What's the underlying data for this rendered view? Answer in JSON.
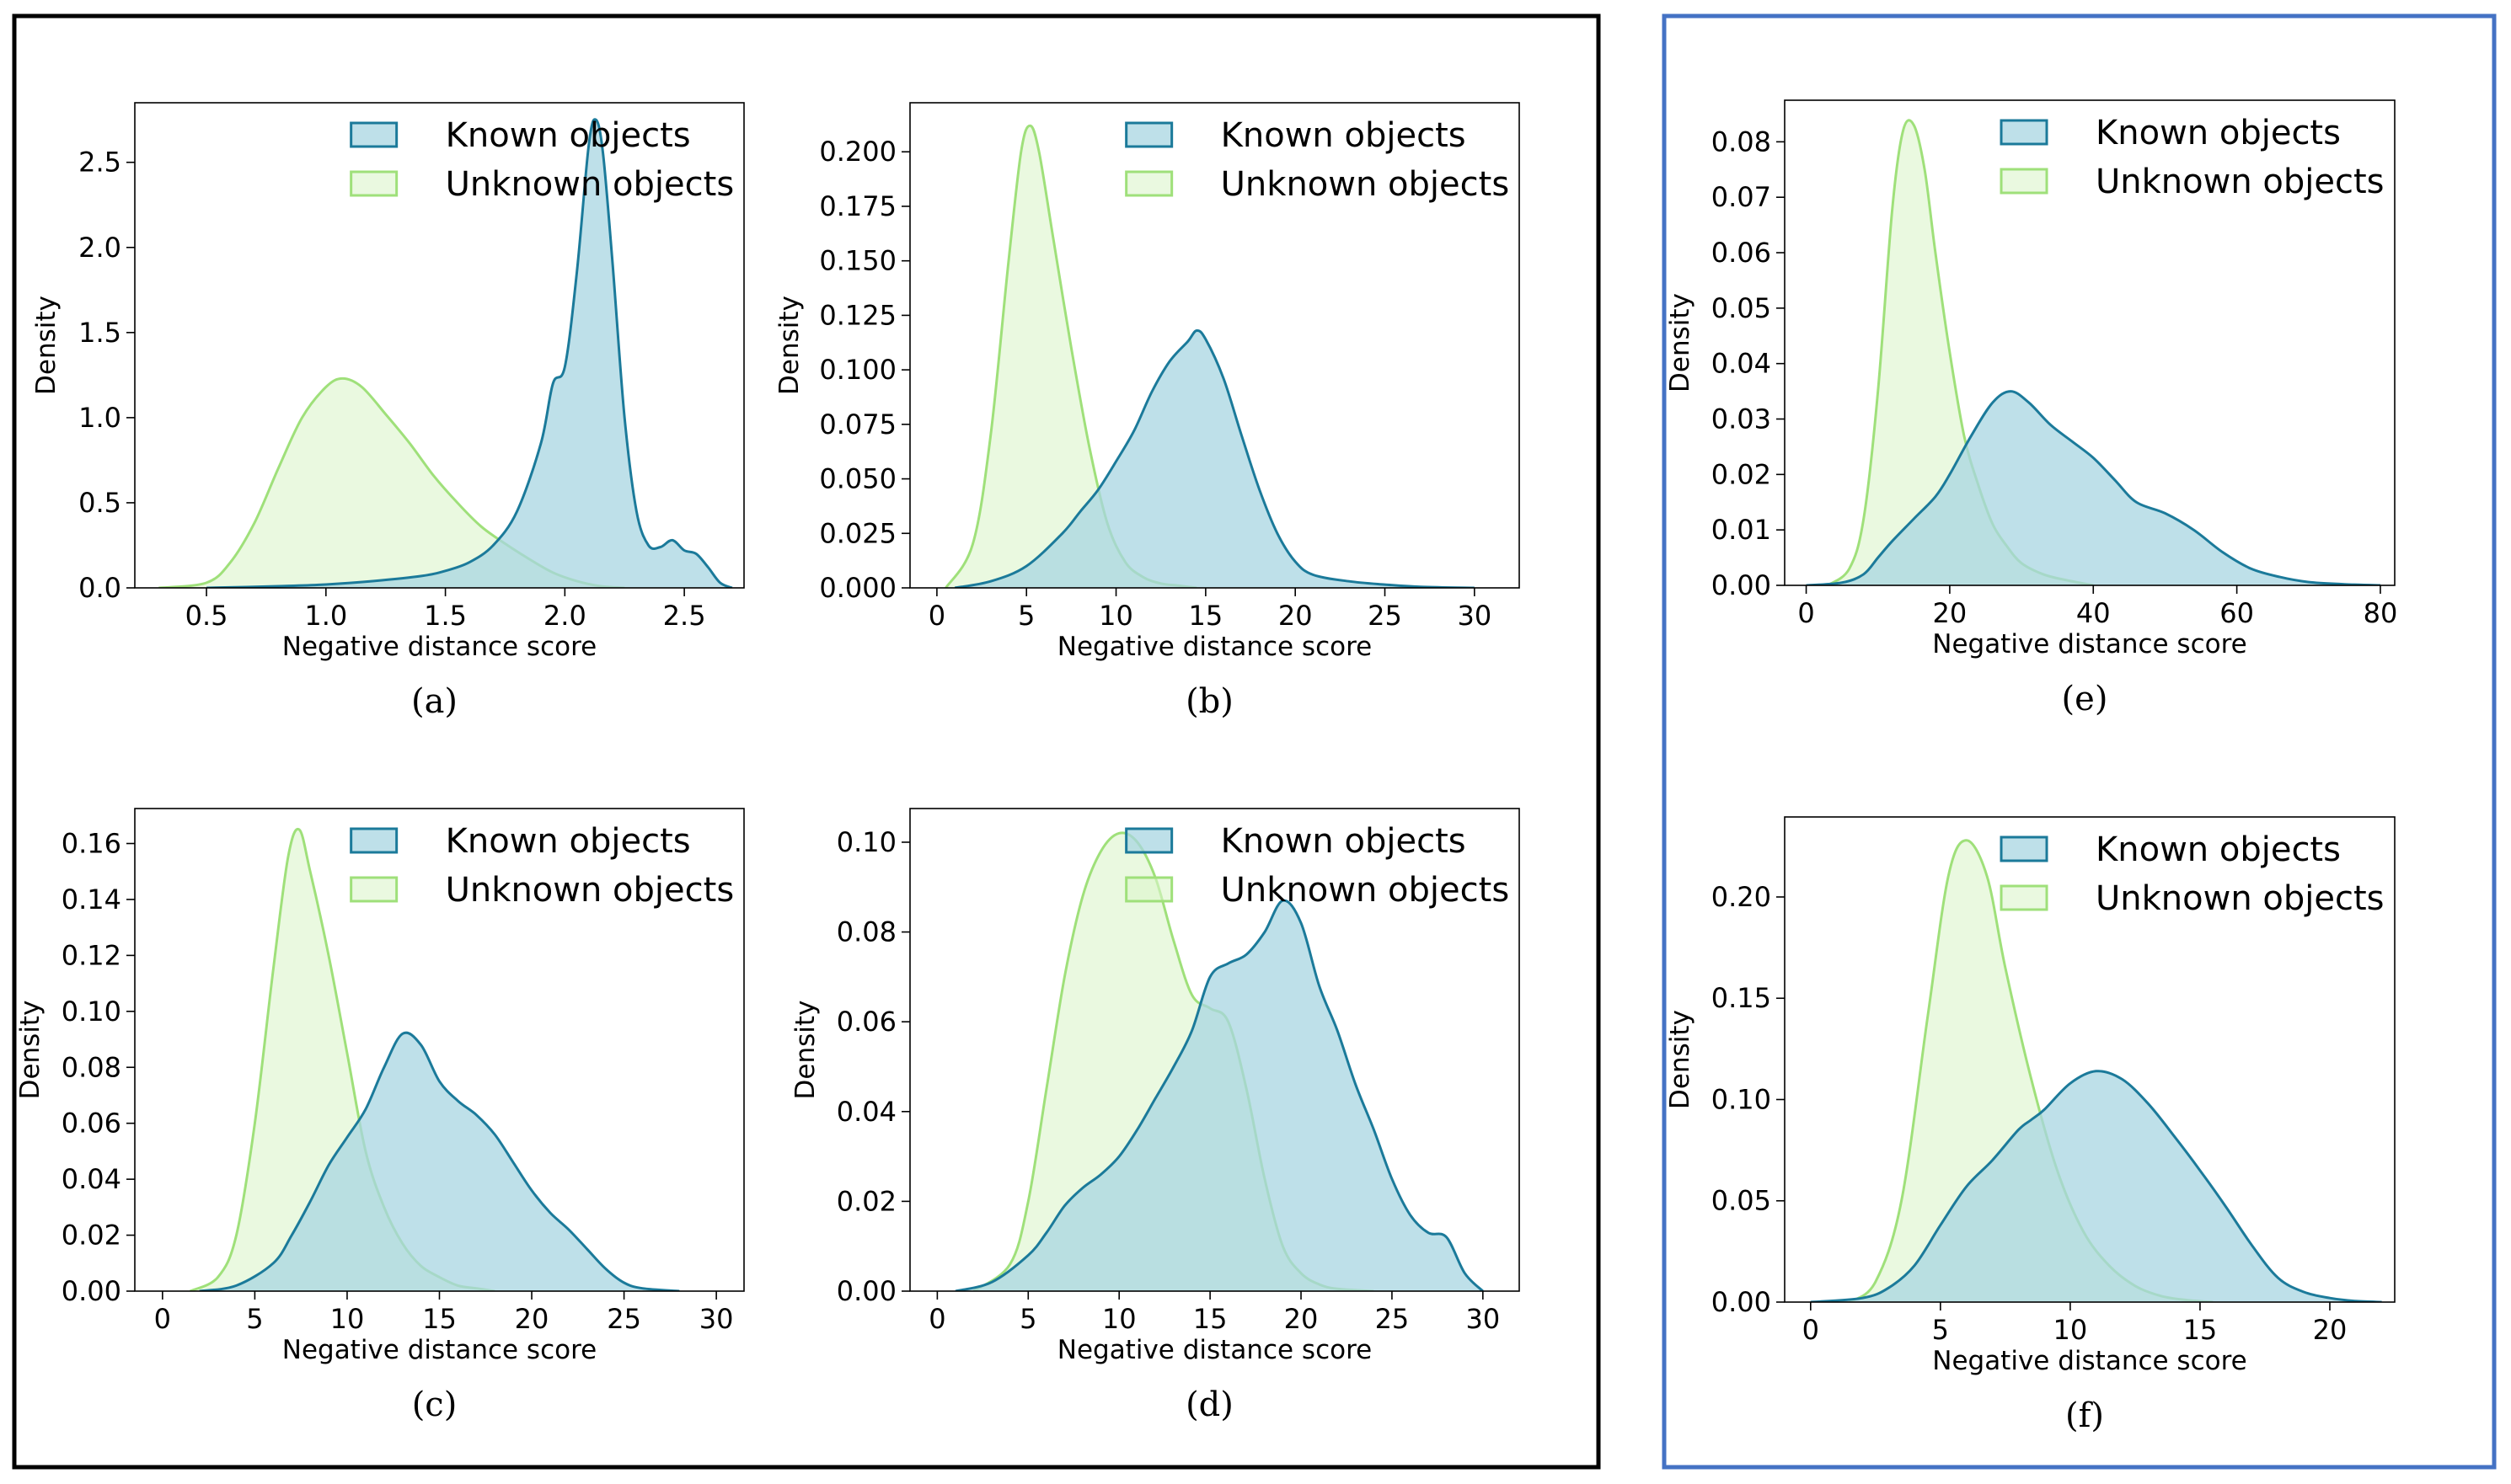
{
  "figure": {
    "border_colors": {
      "left": "#000000",
      "right": "#4472C4"
    }
  },
  "colors": {
    "known_line": "#1b7a9a",
    "known_fill": "#a8d5e2",
    "unknown_line": "#9fe07a",
    "unknown_fill": "#dcf5cc"
  },
  "chart_data": [
    {
      "id": "a",
      "type": "area",
      "caption": "(a)",
      "xlabel": "Negative distance score",
      "ylabel": "Density",
      "xlim": [
        0.2,
        2.75
      ],
      "ylim": [
        0,
        2.85
      ],
      "xticks": [
        0.5,
        1.0,
        1.5,
        2.0,
        2.5
      ],
      "xtick_labels": [
        "0.5",
        "1.0",
        "1.5",
        "2.0",
        "2.5"
      ],
      "yticks": [
        0,
        0.5,
        1.0,
        1.5,
        2.0,
        2.5
      ],
      "ytick_labels": [
        "0.0",
        "0.5",
        "1.0",
        "1.5",
        "2.0",
        "2.5"
      ],
      "legend": {
        "position": "top-right",
        "entries": [
          "Known objects",
          "Unknown objects"
        ]
      },
      "series": [
        {
          "name": "Unknown objects",
          "x": [
            0.3,
            0.5,
            0.6,
            0.7,
            0.8,
            0.9,
            1.0,
            1.07,
            1.15,
            1.25,
            1.35,
            1.45,
            1.55,
            1.65,
            1.75,
            1.85,
            1.95,
            2.05,
            2.15,
            2.25
          ],
          "y": [
            0.0,
            0.03,
            0.15,
            0.38,
            0.7,
            1.0,
            1.18,
            1.23,
            1.18,
            1.02,
            0.85,
            0.66,
            0.5,
            0.36,
            0.26,
            0.17,
            0.09,
            0.04,
            0.01,
            0.0
          ]
        },
        {
          "name": "Known objects",
          "x": [
            0.5,
            0.8,
            1.0,
            1.2,
            1.4,
            1.5,
            1.6,
            1.7,
            1.8,
            1.9,
            1.95,
            2.0,
            2.05,
            2.1,
            2.13,
            2.16,
            2.2,
            2.25,
            2.3,
            2.35,
            2.4,
            2.45,
            2.5,
            2.55,
            2.6,
            2.65,
            2.7
          ],
          "y": [
            0.0,
            0.01,
            0.02,
            0.04,
            0.07,
            0.1,
            0.15,
            0.25,
            0.45,
            0.85,
            1.2,
            1.3,
            1.85,
            2.6,
            2.75,
            2.55,
            1.9,
            1.0,
            0.45,
            0.25,
            0.24,
            0.28,
            0.22,
            0.2,
            0.12,
            0.03,
            0.0
          ]
        }
      ]
    },
    {
      "id": "b",
      "type": "area",
      "caption": "(b)",
      "xlabel": "Negative distance score",
      "ylabel": "Density",
      "xlim": [
        -1.5,
        32.5
      ],
      "ylim": [
        0,
        0.2225
      ],
      "xticks": [
        0,
        5,
        10,
        15,
        20,
        25,
        30
      ],
      "xtick_labels": [
        "0",
        "5",
        "10",
        "15",
        "20",
        "25",
        "30"
      ],
      "yticks": [
        0,
        0.025,
        0.05,
        0.075,
        0.1,
        0.125,
        0.15,
        0.175,
        0.2
      ],
      "ytick_labels": [
        "0.000",
        "0.025",
        "0.050",
        "0.075",
        "0.100",
        "0.125",
        "0.150",
        "0.175",
        "0.200"
      ],
      "legend": {
        "position": "top-right",
        "entries": [
          "Known objects",
          "Unknown objects"
        ]
      },
      "series": [
        {
          "name": "Unknown objects",
          "x": [
            0.5,
            2,
            3,
            4,
            4.7,
            5.2,
            5.7,
            6.5,
            7.5,
            8.5,
            9.5,
            10.5,
            11.5,
            12.5,
            13.5,
            14.5
          ],
          "y": [
            0.0,
            0.02,
            0.07,
            0.15,
            0.2,
            0.212,
            0.2,
            0.16,
            0.11,
            0.065,
            0.03,
            0.012,
            0.005,
            0.002,
            0.001,
            0.0
          ]
        },
        {
          "name": "Known objects",
          "x": [
            1,
            3,
            5,
            7,
            8,
            9,
            10,
            11,
            12,
            13,
            14,
            14.5,
            15,
            16,
            17,
            18,
            19,
            20,
            21,
            23,
            25,
            27,
            30
          ],
          "y": [
            0.0,
            0.003,
            0.01,
            0.025,
            0.035,
            0.045,
            0.058,
            0.072,
            0.09,
            0.104,
            0.113,
            0.118,
            0.114,
            0.096,
            0.07,
            0.045,
            0.025,
            0.012,
            0.006,
            0.003,
            0.0015,
            0.0005,
            0.0
          ]
        }
      ]
    },
    {
      "id": "c",
      "type": "area",
      "caption": "(c)",
      "xlabel": "Negative distance score",
      "ylabel": "Density",
      "xlim": [
        -1.5,
        31.5
      ],
      "ylim": [
        0,
        0.1725
      ],
      "xticks": [
        0,
        5,
        10,
        15,
        20,
        25,
        30
      ],
      "xtick_labels": [
        "0",
        "5",
        "10",
        "15",
        "20",
        "25",
        "30"
      ],
      "yticks": [
        0,
        0.02,
        0.04,
        0.06,
        0.08,
        0.1,
        0.12,
        0.14,
        0.16
      ],
      "ytick_labels": [
        "0.00",
        "0.02",
        "0.04",
        "0.06",
        "0.08",
        "0.10",
        "0.12",
        "0.14",
        "0.16"
      ],
      "legend": {
        "position": "top-right",
        "entries": [
          "Known objects",
          "Unknown objects"
        ]
      },
      "series": [
        {
          "name": "Unknown objects",
          "x": [
            1.5,
            3,
            4,
            5,
            6,
            6.8,
            7.4,
            8,
            9,
            10,
            11,
            12,
            13,
            14,
            15,
            16,
            17,
            18
          ],
          "y": [
            0.0,
            0.005,
            0.02,
            0.06,
            0.115,
            0.155,
            0.165,
            0.15,
            0.12,
            0.085,
            0.05,
            0.03,
            0.017,
            0.009,
            0.005,
            0.002,
            0.001,
            0.0
          ]
        },
        {
          "name": "Known objects",
          "x": [
            2,
            4,
            6,
            7,
            8,
            9,
            10,
            11,
            12,
            13,
            14,
            15,
            16,
            17,
            18,
            19,
            20,
            21,
            22,
            23,
            24,
            25,
            26,
            28
          ],
          "y": [
            0.0,
            0.002,
            0.01,
            0.02,
            0.032,
            0.045,
            0.055,
            0.065,
            0.08,
            0.092,
            0.088,
            0.075,
            0.068,
            0.063,
            0.056,
            0.046,
            0.036,
            0.028,
            0.022,
            0.015,
            0.008,
            0.003,
            0.001,
            0.0
          ]
        }
      ]
    },
    {
      "id": "d",
      "type": "area",
      "caption": "(d)",
      "xlabel": "Negative distance score",
      "ylabel": "Density",
      "xlim": [
        -1.5,
        32
      ],
      "ylim": [
        0,
        0.1075
      ],
      "xticks": [
        0,
        5,
        10,
        15,
        20,
        25,
        30
      ],
      "xtick_labels": [
        "0",
        "5",
        "10",
        "15",
        "20",
        "25",
        "30"
      ],
      "yticks": [
        0,
        0.02,
        0.04,
        0.06,
        0.08,
        0.1
      ],
      "ytick_labels": [
        "0.00",
        "0.02",
        "0.04",
        "0.06",
        "0.08",
        "0.10"
      ],
      "legend": {
        "position": "top-right",
        "entries": [
          "Known objects",
          "Unknown objects"
        ]
      },
      "series": [
        {
          "name": "Unknown objects",
          "x": [
            2,
            4,
            5,
            6,
            7,
            8,
            9,
            10,
            11,
            12,
            13,
            14,
            15,
            16,
            17,
            18,
            19,
            20,
            21,
            22,
            24
          ],
          "y": [
            0.0,
            0.006,
            0.02,
            0.045,
            0.07,
            0.088,
            0.098,
            0.102,
            0.1,
            0.092,
            0.078,
            0.066,
            0.063,
            0.06,
            0.045,
            0.025,
            0.01,
            0.004,
            0.0015,
            0.0005,
            0.0
          ]
        },
        {
          "name": "Known objects",
          "x": [
            1,
            3,
            5,
            6,
            7,
            8,
            9,
            10,
            11,
            12,
            13,
            14,
            15,
            16,
            17,
            18,
            19,
            20,
            21,
            22,
            23,
            24,
            25,
            26,
            27,
            28,
            29,
            30
          ],
          "y": [
            0.0,
            0.002,
            0.008,
            0.013,
            0.019,
            0.023,
            0.026,
            0.03,
            0.036,
            0.043,
            0.05,
            0.058,
            0.07,
            0.073,
            0.075,
            0.08,
            0.087,
            0.082,
            0.068,
            0.058,
            0.046,
            0.036,
            0.025,
            0.017,
            0.013,
            0.012,
            0.004,
            0.0
          ]
        }
      ]
    },
    {
      "id": "e",
      "type": "area",
      "caption": "(e)",
      "xlabel": "Negative distance score",
      "ylabel": "Density",
      "xlim": [
        -3,
        82
      ],
      "ylim": [
        0,
        0.0875
      ],
      "xticks": [
        0,
        20,
        40,
        60,
        80
      ],
      "xtick_labels": [
        "0",
        "20",
        "40",
        "60",
        "80"
      ],
      "yticks": [
        0,
        0.01,
        0.02,
        0.03,
        0.04,
        0.05,
        0.06,
        0.07,
        0.08
      ],
      "ytick_labels": [
        "0.00",
        "0.01",
        "0.02",
        "0.03",
        "0.04",
        "0.05",
        "0.06",
        "0.07",
        "0.08"
      ],
      "legend": {
        "position": "top-right",
        "entries": [
          "Known objects",
          "Unknown objects"
        ]
      },
      "series": [
        {
          "name": "Unknown objects",
          "x": [
            3,
            6,
            8,
            10,
            12,
            13.5,
            15,
            16.5,
            18,
            20,
            22,
            24,
            26,
            28,
            30,
            33,
            36,
            40
          ],
          "y": [
            0.0,
            0.003,
            0.012,
            0.035,
            0.068,
            0.082,
            0.083,
            0.075,
            0.06,
            0.042,
            0.027,
            0.018,
            0.011,
            0.007,
            0.004,
            0.002,
            0.001,
            0.0
          ]
        },
        {
          "name": "Known objects",
          "x": [
            0,
            5,
            8,
            10,
            12,
            15,
            18,
            20,
            23,
            26,
            28.5,
            31,
            34,
            37,
            40,
            43,
            46,
            50,
            54,
            58,
            62,
            66,
            70,
            75,
            80
          ],
          "y": [
            0.0,
            0.0005,
            0.002,
            0.005,
            0.008,
            0.012,
            0.016,
            0.02,
            0.027,
            0.033,
            0.035,
            0.033,
            0.029,
            0.026,
            0.023,
            0.019,
            0.015,
            0.013,
            0.01,
            0.006,
            0.003,
            0.0015,
            0.0006,
            0.0002,
            0.0
          ]
        }
      ]
    },
    {
      "id": "f",
      "type": "area",
      "caption": "(f)",
      "xlabel": "Negative distance score",
      "ylabel": "Density",
      "xlim": [
        -1,
        22.5
      ],
      "ylim": [
        0,
        0.2395
      ],
      "xticks": [
        0,
        5,
        10,
        15,
        20
      ],
      "xtick_labels": [
        "0",
        "5",
        "10",
        "15",
        "20"
      ],
      "yticks": [
        0,
        0.05,
        0.1,
        0.15,
        0.2
      ],
      "ytick_labels": [
        "0.00",
        "0.05",
        "0.10",
        "0.15",
        "0.20"
      ],
      "legend": {
        "position": "top-right",
        "entries": [
          "Known objects",
          "Unknown objects"
        ]
      },
      "series": [
        {
          "name": "Unknown objects",
          "x": [
            1.5,
            2.5,
            3.5,
            4.5,
            5.3,
            6,
            6.8,
            7.5,
            8.5,
            9.5,
            10.5,
            11.5,
            12.5,
            13.5,
            14.5,
            15.5
          ],
          "y": [
            0.0,
            0.01,
            0.05,
            0.14,
            0.21,
            0.228,
            0.21,
            0.165,
            0.11,
            0.065,
            0.035,
            0.018,
            0.008,
            0.003,
            0.001,
            0.0
          ]
        },
        {
          "name": "Known objects",
          "x": [
            0,
            2,
            3,
            4,
            5,
            6,
            7,
            8,
            8.5,
            9,
            10,
            11,
            12,
            13,
            14,
            15,
            16,
            17,
            18,
            19,
            20,
            21,
            22
          ],
          "y": [
            0.0,
            0.002,
            0.007,
            0.018,
            0.038,
            0.057,
            0.07,
            0.085,
            0.09,
            0.095,
            0.108,
            0.114,
            0.11,
            0.098,
            0.082,
            0.065,
            0.047,
            0.028,
            0.012,
            0.005,
            0.002,
            0.0005,
            0.0
          ]
        }
      ]
    }
  ]
}
